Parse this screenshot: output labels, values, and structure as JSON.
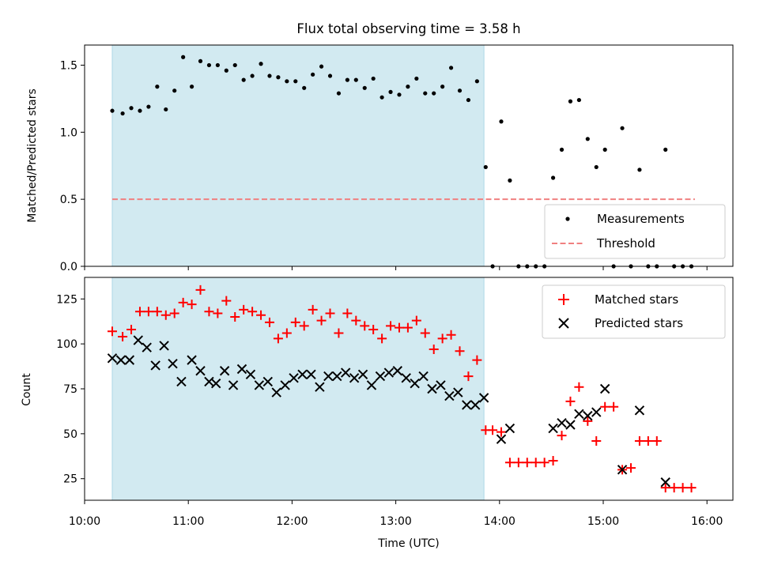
{
  "chart_data": [
    {
      "type": "scatter",
      "title": "Flux total observing time = 3.58 h",
      "xlabel": "",
      "ylabel": "Matched/Predicted stars",
      "xlim": [
        "10:00",
        "16:15"
      ],
      "ylim": [
        0,
        1.65
      ],
      "yticks": [
        0.0,
        0.5,
        1.0,
        1.5
      ],
      "ytick_labels": [
        "0.0",
        "0.5",
        "1.0",
        "1.5"
      ],
      "grid": false,
      "legend": {
        "placement": "bottom-right",
        "entries": [
          "Measurements",
          "Threshold"
        ]
      },
      "shaded_region": {
        "x_start": "10:16",
        "x_end": "13:51",
        "color": "#add8e6"
      },
      "threshold": {
        "name": "Threshold",
        "y": 0.5,
        "x_start": "10:16",
        "x_end": "15:53",
        "color": "#f08080",
        "style": "dashed"
      },
      "series": [
        {
          "name": "Measurements",
          "marker": "dot",
          "color": "#000000",
          "x": [
            "10:16",
            "10:22",
            "10:27",
            "10:32",
            "10:37",
            "10:42",
            "10:47",
            "10:52",
            "10:57",
            "11:02",
            "11:07",
            "11:12",
            "11:17",
            "11:22",
            "11:27",
            "11:32",
            "11:37",
            "11:42",
            "11:47",
            "11:52",
            "11:57",
            "12:02",
            "12:07",
            "12:12",
            "12:17",
            "12:22",
            "12:27",
            "12:32",
            "12:37",
            "12:42",
            "12:47",
            "12:52",
            "12:57",
            "13:02",
            "13:07",
            "13:12",
            "13:17",
            "13:22",
            "13:27",
            "13:32",
            "13:37",
            "13:42",
            "13:47",
            "13:52",
            "13:56",
            "14:01",
            "14:06",
            "14:11",
            "14:16",
            "14:21",
            "14:26",
            "14:31",
            "14:36",
            "14:41",
            "14:46",
            "14:51",
            "14:56",
            "15:01",
            "15:06",
            "15:11",
            "15:16",
            "15:21",
            "15:26",
            "15:31",
            "15:36",
            "15:41",
            "15:46",
            "15:51"
          ],
          "y": [
            1.16,
            1.14,
            1.18,
            1.16,
            1.19,
            1.34,
            1.17,
            1.31,
            1.56,
            1.34,
            1.53,
            1.5,
            1.5,
            1.46,
            1.5,
            1.39,
            1.42,
            1.51,
            1.42,
            1.41,
            1.38,
            1.38,
            1.33,
            1.43,
            1.49,
            1.42,
            1.29,
            1.39,
            1.39,
            1.33,
            1.4,
            1.26,
            1.3,
            1.28,
            1.34,
            1.4,
            1.29,
            1.29,
            1.34,
            1.48,
            1.31,
            1.24,
            1.38,
            0.74,
            0.0,
            1.08,
            0.64,
            0.0,
            0.0,
            0.0,
            0.0,
            0.66,
            0.87,
            1.23,
            1.24,
            0.95,
            0.74,
            0.87,
            0.0,
            1.03,
            0.0,
            0.72,
            0.0,
            0.0,
            0.87,
            0.0,
            0.0,
            0.0
          ]
        }
      ]
    },
    {
      "type": "scatter",
      "title": "",
      "xlabel": "Time (UTC)",
      "ylabel": "Count",
      "xlim": [
        "10:00",
        "16:15"
      ],
      "ylim": [
        13,
        137
      ],
      "yticks": [
        25,
        50,
        75,
        100,
        125
      ],
      "ytick_labels": [
        "25",
        "50",
        "75",
        "100",
        "125"
      ],
      "xticks": [
        "10:00",
        "11:00",
        "12:00",
        "13:00",
        "14:00",
        "15:00",
        "16:00"
      ],
      "xtick_labels": [
        "10:00",
        "11:00",
        "12:00",
        "13:00",
        "14:00",
        "15:00",
        "16:00"
      ],
      "grid": false,
      "legend": {
        "placement": "top-right",
        "entries": [
          "Matched stars",
          "Predicted stars"
        ]
      },
      "shaded_region": {
        "x_start": "10:16",
        "x_end": "13:51",
        "color": "#add8e6"
      },
      "series": [
        {
          "name": "Matched stars",
          "marker": "plus",
          "color": "#ff0000",
          "x": [
            "10:16",
            "10:22",
            "10:27",
            "10:32",
            "10:37",
            "10:42",
            "10:47",
            "10:52",
            "10:57",
            "11:02",
            "11:07",
            "11:12",
            "11:17",
            "11:22",
            "11:27",
            "11:32",
            "11:37",
            "11:42",
            "11:47",
            "11:52",
            "11:57",
            "12:02",
            "12:07",
            "12:12",
            "12:17",
            "12:22",
            "12:27",
            "12:32",
            "12:37",
            "12:42",
            "12:47",
            "12:52",
            "12:57",
            "13:02",
            "13:07",
            "13:12",
            "13:17",
            "13:22",
            "13:27",
            "13:32",
            "13:37",
            "13:42",
            "13:47",
            "13:52",
            "13:56",
            "14:01",
            "14:06",
            "14:11",
            "14:16",
            "14:21",
            "14:26",
            "14:31",
            "14:36",
            "14:41",
            "14:46",
            "14:51",
            "14:56",
            "15:01",
            "15:06",
            "15:11",
            "15:16",
            "15:21",
            "15:26",
            "15:31",
            "15:36",
            "15:41",
            "15:46",
            "15:51"
          ],
          "y": [
            107,
            104,
            108,
            118,
            118,
            118,
            116,
            117,
            123,
            122,
            130,
            118,
            117,
            124,
            115,
            119,
            118,
            116,
            112,
            103,
            106,
            112,
            110,
            119,
            113,
            117,
            106,
            117,
            113,
            110,
            108,
            103,
            110,
            109,
            109,
            113,
            106,
            97,
            103,
            105,
            96,
            82,
            91,
            52,
            52,
            51,
            34,
            34,
            34,
            34,
            34,
            35,
            49,
            68,
            76,
            57,
            46,
            65,
            65,
            30,
            31,
            46,
            46,
            46,
            20,
            20,
            20,
            20
          ]
        },
        {
          "name": "Predicted stars",
          "marker": "x",
          "color": "#000000",
          "x": [
            "10:16",
            "10:21",
            "10:26",
            "10:31",
            "10:36",
            "10:41",
            "10:46",
            "10:51",
            "10:56",
            "11:02",
            "11:07",
            "11:12",
            "11:16",
            "11:21",
            "11:26",
            "11:31",
            "11:36",
            "11:41",
            "11:46",
            "11:51",
            "11:56",
            "12:01",
            "12:06",
            "12:11",
            "12:16",
            "12:21",
            "12:26",
            "12:31",
            "12:36",
            "12:41",
            "12:46",
            "12:51",
            "12:56",
            "13:01",
            "13:06",
            "13:11",
            "13:16",
            "13:21",
            "13:26",
            "13:31",
            "13:36",
            "13:41",
            "13:46",
            "13:51",
            "14:01",
            "14:06",
            "14:31",
            "14:36",
            "14:41",
            "14:46",
            "14:51",
            "14:56",
            "15:01",
            "15:11",
            "15:21",
            "15:36"
          ],
          "y": [
            92,
            91,
            91,
            102,
            98,
            88,
            99,
            89,
            79,
            91,
            85,
            79,
            78,
            85,
            77,
            86,
            83,
            77,
            79,
            73,
            77,
            81,
            83,
            83,
            76,
            82,
            82,
            84,
            81,
            83,
            77,
            82,
            84,
            85,
            81,
            78,
            82,
            75,
            77,
            71,
            73,
            66,
            66,
            70,
            47,
            53,
            53,
            56,
            55,
            61,
            60,
            62,
            75,
            30,
            63,
            23
          ]
        }
      ]
    }
  ]
}
